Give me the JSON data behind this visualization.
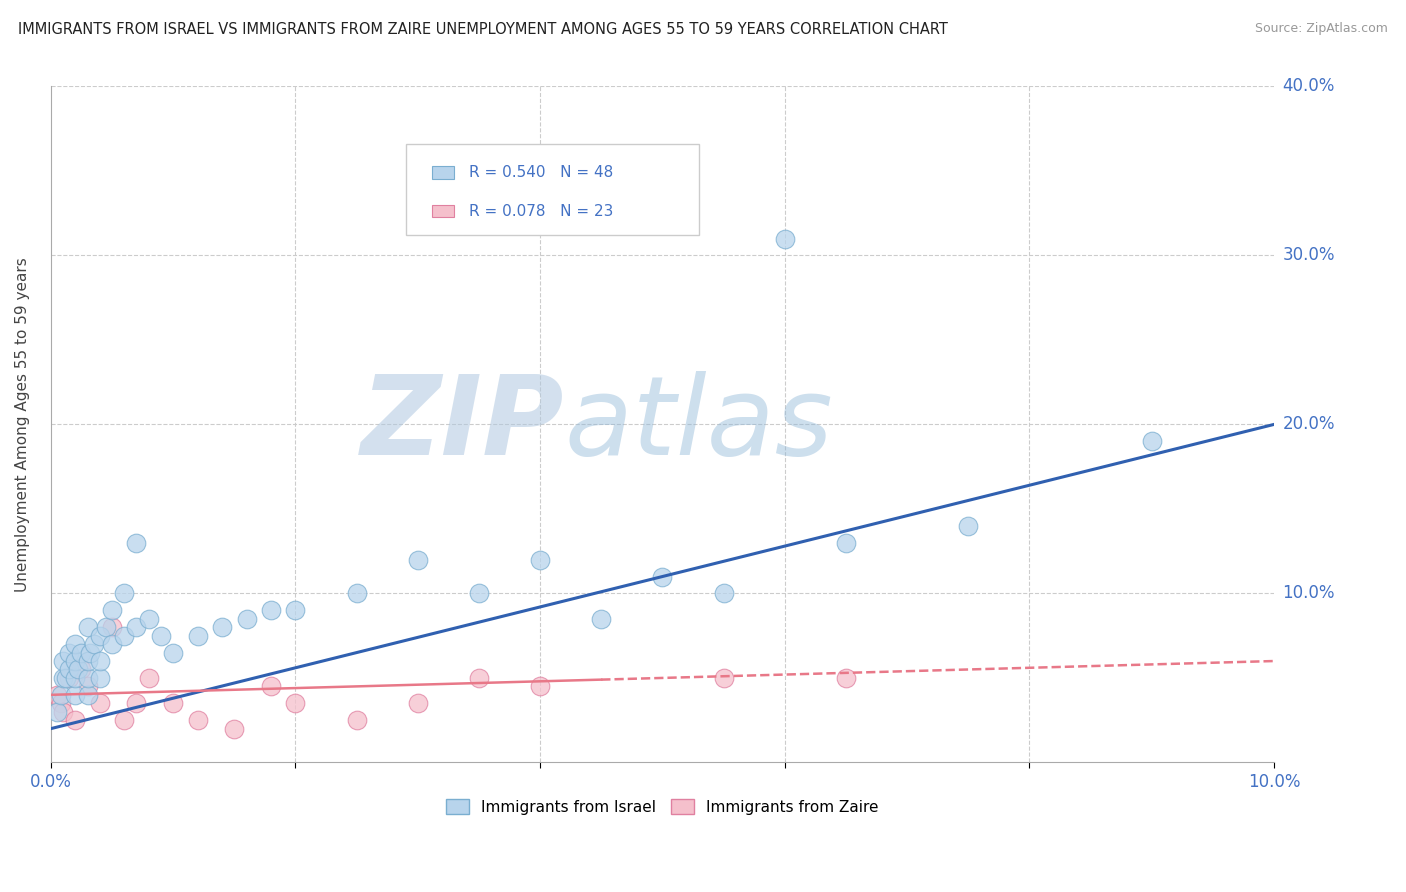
{
  "title": "IMMIGRANTS FROM ISRAEL VS IMMIGRANTS FROM ZAIRE UNEMPLOYMENT AMONG AGES 55 TO 59 YEARS CORRELATION CHART",
  "source": "Source: ZipAtlas.com",
  "ylabel": "Unemployment Among Ages 55 to 59 years",
  "xlim": [
    0.0,
    0.1
  ],
  "ylim": [
    0.0,
    0.4
  ],
  "xticks": [
    0.0,
    0.02,
    0.04,
    0.06,
    0.08,
    0.1
  ],
  "yticks": [
    0.0,
    0.1,
    0.2,
    0.3,
    0.4
  ],
  "xtick_labels": [
    "0.0%",
    "",
    "",
    "",
    "",
    "10.0%"
  ],
  "ytick_labels_right": [
    "40.0%",
    "30.0%",
    "20.0%",
    "10.0%",
    ""
  ],
  "watermark_zip": "ZIP",
  "watermark_atlas": "atlas",
  "watermark_zip_color": "#b0c8e0",
  "watermark_atlas_color": "#90b8d8",
  "background_color": "#ffffff",
  "grid_color": "#cccccc",
  "israel_color": "#b8d4ec",
  "israel_edge_color": "#7aaed0",
  "zaire_color": "#f5c0cc",
  "zaire_edge_color": "#e080a0",
  "israel_line_color": "#3060b0",
  "zaire_line_color": "#e87888",
  "israel_R": 0.54,
  "israel_N": 48,
  "zaire_R": 0.078,
  "zaire_N": 23,
  "legend_israel_R_color": "#4472c4",
  "legend_israel_N_color": "#e05060",
  "legend_zaire_R_color": "#4472c4",
  "legend_zaire_N_color": "#e05060",
  "israel_x": [
    0.0005,
    0.0008,
    0.001,
    0.001,
    0.0012,
    0.0015,
    0.0015,
    0.002,
    0.002,
    0.002,
    0.002,
    0.0022,
    0.0025,
    0.003,
    0.003,
    0.003,
    0.003,
    0.0032,
    0.0035,
    0.004,
    0.004,
    0.004,
    0.0045,
    0.005,
    0.005,
    0.006,
    0.006,
    0.007,
    0.007,
    0.008,
    0.009,
    0.01,
    0.012,
    0.014,
    0.016,
    0.018,
    0.02,
    0.025,
    0.03,
    0.035,
    0.04,
    0.045,
    0.05,
    0.055,
    0.06,
    0.065,
    0.075,
    0.09
  ],
  "israel_y": [
    0.03,
    0.04,
    0.05,
    0.06,
    0.05,
    0.055,
    0.065,
    0.04,
    0.05,
    0.06,
    0.07,
    0.055,
    0.065,
    0.04,
    0.05,
    0.06,
    0.08,
    0.065,
    0.07,
    0.05,
    0.06,
    0.075,
    0.08,
    0.07,
    0.09,
    0.075,
    0.1,
    0.08,
    0.13,
    0.085,
    0.075,
    0.065,
    0.075,
    0.08,
    0.085,
    0.09,
    0.09,
    0.1,
    0.12,
    0.1,
    0.12,
    0.085,
    0.11,
    0.1,
    0.31,
    0.13,
    0.14,
    0.19
  ],
  "zaire_x": [
    0.0005,
    0.0008,
    0.001,
    0.0015,
    0.002,
    0.0025,
    0.003,
    0.004,
    0.005,
    0.006,
    0.007,
    0.008,
    0.01,
    0.012,
    0.015,
    0.018,
    0.02,
    0.025,
    0.03,
    0.035,
    0.04,
    0.055,
    0.065
  ],
  "zaire_y": [
    0.04,
    0.035,
    0.03,
    0.05,
    0.025,
    0.055,
    0.045,
    0.035,
    0.08,
    0.025,
    0.035,
    0.05,
    0.035,
    0.025,
    0.02,
    0.045,
    0.035,
    0.025,
    0.035,
    0.05,
    0.045,
    0.05,
    0.05
  ]
}
